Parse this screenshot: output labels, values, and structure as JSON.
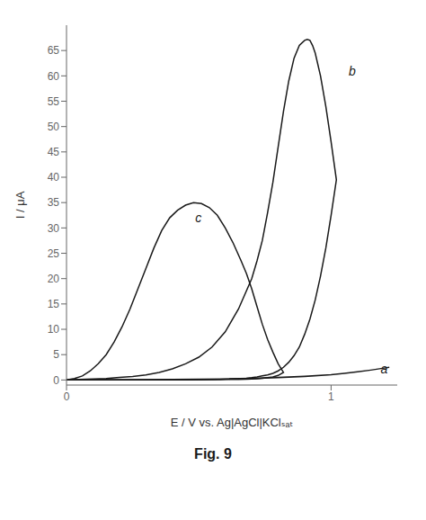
{
  "chart_data": {
    "type": "line",
    "xlabel": "E / V vs. Ag|AgCl|KClₛₐₜ",
    "ylabel": "I / μA",
    "caption": "Fig. 9",
    "xlim": [
      0,
      1.25
    ],
    "ylim": [
      -1,
      70
    ],
    "xticks": [
      0,
      1
    ],
    "yticks": [
      0,
      5,
      10,
      15,
      20,
      25,
      30,
      35,
      40,
      45,
      50,
      55,
      60,
      65
    ],
    "series": [
      {
        "color": "#1a1a1a",
        "x": [
          0.0,
          0.1,
          0.2,
          0.3,
          0.4,
          0.5,
          0.6,
          0.7,
          0.8,
          0.9,
          1.0,
          1.05,
          1.1,
          1.15,
          1.2,
          1.22,
          1.2,
          1.15,
          1.1,
          1.05,
          1.0,
          0.9,
          0.8,
          0.7,
          0.6,
          0.5,
          0.4,
          0.3,
          0.2,
          0.1,
          0.0
        ],
        "values": [
          0.0,
          0.02,
          0.04,
          0.06,
          0.08,
          0.12,
          0.18,
          0.28,
          0.45,
          0.7,
          1.05,
          1.3,
          1.6,
          1.95,
          2.35,
          2.5,
          2.35,
          1.95,
          1.6,
          1.3,
          1.05,
          0.75,
          0.52,
          0.35,
          0.22,
          0.14,
          0.09,
          0.06,
          0.04,
          0.02,
          0.0
        ]
      },
      {
        "color": "#1a1a1a",
        "x": [
          0.0,
          0.05,
          0.1,
          0.15,
          0.2,
          0.25,
          0.3,
          0.35,
          0.4,
          0.45,
          0.5,
          0.55,
          0.6,
          0.65,
          0.7,
          0.72,
          0.74,
          0.76,
          0.78,
          0.8,
          0.82,
          0.84,
          0.86,
          0.88,
          0.9,
          0.91,
          0.92,
          0.93,
          0.94,
          0.96,
          0.98,
          1.0,
          1.02,
          1.02,
          1.0,
          0.98,
          0.96,
          0.94,
          0.92,
          0.9,
          0.88,
          0.86,
          0.84,
          0.82,
          0.8,
          0.78,
          0.76,
          0.74,
          0.72,
          0.7,
          0.68,
          0.65,
          0.62,
          0.58,
          0.54,
          0.5,
          0.45,
          0.4,
          0.35,
          0.3,
          0.25,
          0.2,
          0.15,
          0.1,
          0.05,
          0.0
        ],
        "values": [
          0.0,
          0.1,
          0.2,
          0.3,
          0.5,
          0.7,
          1.0,
          1.5,
          2.2,
          3.2,
          4.5,
          6.5,
          9.5,
          14.0,
          20.0,
          23.5,
          27.5,
          33.0,
          39.0,
          46.0,
          53.0,
          59.0,
          63.5,
          66.0,
          67.0,
          67.2,
          67.0,
          66.0,
          64.5,
          60.0,
          54.0,
          47.0,
          39.5,
          39.5,
          32.5,
          26.0,
          20.5,
          15.8,
          12.0,
          9.0,
          6.5,
          4.8,
          3.5,
          2.5,
          1.8,
          1.3,
          1.0,
          0.8,
          0.6,
          0.45,
          0.35,
          0.25,
          0.18,
          0.12,
          0.09,
          0.07,
          0.05,
          0.04,
          0.03,
          0.02,
          0.02,
          0.01,
          0.01,
          0.0,
          0.0,
          0.0
        ]
      },
      {
        "color": "#1a1a1a",
        "x": [
          0.0,
          0.03,
          0.06,
          0.09,
          0.12,
          0.15,
          0.18,
          0.21,
          0.24,
          0.27,
          0.3,
          0.33,
          0.36,
          0.39,
          0.42,
          0.45,
          0.48,
          0.51,
          0.54,
          0.57,
          0.6,
          0.63,
          0.66,
          0.68,
          0.7,
          0.72,
          0.74,
          0.76,
          0.78,
          0.8,
          0.82,
          0.82,
          0.8,
          0.78,
          0.76,
          0.74,
          0.72,
          0.7,
          0.68,
          0.65,
          0.6,
          0.55,
          0.5,
          0.45,
          0.4,
          0.35,
          0.3,
          0.25,
          0.2,
          0.15,
          0.1,
          0.05,
          0.0
        ],
        "values": [
          0.0,
          0.3,
          0.8,
          1.8,
          3.2,
          5.0,
          7.5,
          10.5,
          14.0,
          18.0,
          22.0,
          26.0,
          29.5,
          32.0,
          33.5,
          34.5,
          35.0,
          34.8,
          34.0,
          32.5,
          30.0,
          27.0,
          23.5,
          21.0,
          18.0,
          14.5,
          11.0,
          8.0,
          5.5,
          3.2,
          1.5,
          1.5,
          0.9,
          0.6,
          0.45,
          0.35,
          0.25,
          0.2,
          0.16,
          0.12,
          0.09,
          0.07,
          0.05,
          0.04,
          0.03,
          0.02,
          0.02,
          0.01,
          0.01,
          0.01,
          0.0,
          0.0,
          0.0
        ]
      }
    ],
    "annotations": [
      {
        "text": "a",
        "x": 1.17,
        "y": 2.2
      },
      {
        "text": "b",
        "x": 1.05,
        "y": 61
      },
      {
        "text": "c",
        "x": 0.47,
        "y": 32
      }
    ]
  }
}
